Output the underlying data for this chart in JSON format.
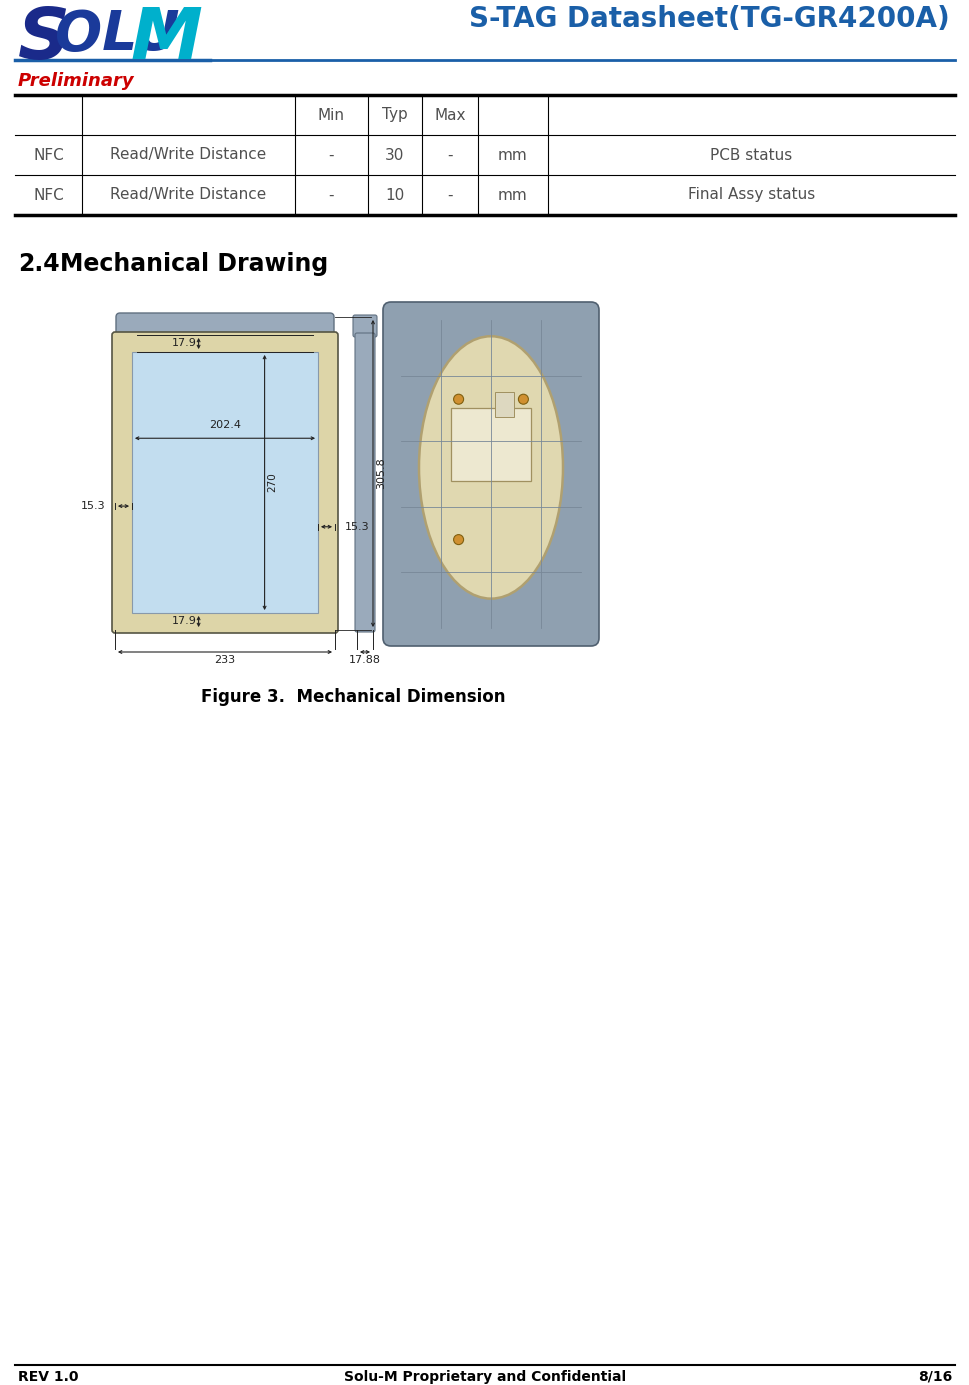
{
  "title": "S-TAG Datasheet(TG-GR4200A)",
  "preliminary_text": "Preliminary",
  "header_title_color": "#1a5fa8",
  "preliminary_color": "#cc0000",
  "table_text_color": "#505050",
  "section_title_num": "2.4",
  "section_title_text": "Mechanical Drawing",
  "figure_caption": "Figure 3.  Mechanical Dimension",
  "footer_left": "REV 1.0",
  "footer_center": "Solu-M Proprietary and Confidential",
  "footer_right": "8/16",
  "bg_color": "#ffffff",
  "dim_color": "#222222",
  "device_frame_color": "#ddd5a8",
  "device_screen_color": "#c2ddef",
  "device_body_color": "#8fa0b0",
  "device_inner_color": "#e0d8b0",
  "device_cap_color": "#9aaabb",
  "table_rows": [
    [
      "NFC",
      "Read/Write Distance",
      "-",
      "30",
      "-",
      "mm",
      "PCB status"
    ],
    [
      "NFC",
      "Read/Write Distance",
      "-",
      "10",
      "-",
      "mm",
      "Final Assy status"
    ]
  ],
  "logo_s_color": "#1a2a8a",
  "logo_olu_color": "#1a3a9a",
  "logo_m_color": "#00b0cc",
  "logo_underline_color": "#1a5fa8"
}
